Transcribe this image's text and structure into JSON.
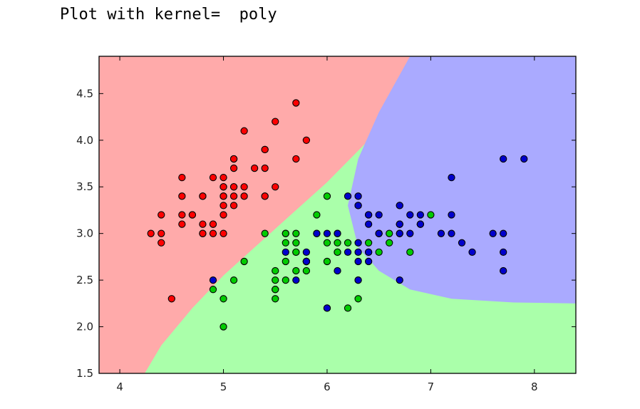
{
  "output": {
    "text": "Plot with kernel=  poly"
  },
  "chart_data": {
    "type": "scatter",
    "title": "",
    "xlabel": "",
    "ylabel": "",
    "xlim": [
      3.8,
      8.4
    ],
    "ylim": [
      1.5,
      4.9
    ],
    "grid": false,
    "legend": "none",
    "x_ticks": [
      4,
      5,
      6,
      7,
      8
    ],
    "y_ticks": [
      1.5,
      2.0,
      2.5,
      3.0,
      3.5,
      4.0,
      4.5
    ],
    "x_tick_labels": [
      "4",
      "5",
      "6",
      "7",
      "8"
    ],
    "y_tick_labels": [
      "1.5",
      "2.0",
      "2.5",
      "3.0",
      "3.5",
      "4.0",
      "4.5"
    ],
    "region_colors": {
      "class0": "#ffaaaa",
      "class1": "#aaffaa",
      "class2": "#aaaaff"
    },
    "decision_regions": {
      "class0_green_boundary": [
        [
          4.24,
          1.5
        ],
        [
          4.4,
          1.8
        ],
        [
          4.7,
          2.2
        ],
        [
          5.0,
          2.55
        ],
        [
          5.3,
          2.85
        ],
        [
          5.6,
          3.15
        ],
        [
          6.0,
          3.55
        ],
        [
          6.4,
          4.0
        ],
        [
          7.0,
          4.65
        ],
        [
          7.3,
          4.9
        ]
      ],
      "class2_region": [
        [
          6.8,
          4.9
        ],
        [
          6.5,
          4.3
        ],
        [
          6.3,
          3.8
        ],
        [
          6.2,
          3.3
        ],
        [
          6.3,
          2.85
        ],
        [
          6.5,
          2.6
        ],
        [
          6.8,
          2.4
        ],
        [
          7.2,
          2.3
        ],
        [
          7.8,
          2.26
        ],
        [
          8.4,
          2.25
        ],
        [
          8.4,
          4.9
        ]
      ]
    },
    "series": [
      {
        "color": "#ff0000",
        "points": [
          [
            5.1,
            3.5
          ],
          [
            4.9,
            3.0
          ],
          [
            4.7,
            3.2
          ],
          [
            4.6,
            3.1
          ],
          [
            5.0,
            3.6
          ],
          [
            5.4,
            3.9
          ],
          [
            4.6,
            3.4
          ],
          [
            5.0,
            3.4
          ],
          [
            4.4,
            2.9
          ],
          [
            4.9,
            3.1
          ],
          [
            5.4,
            3.7
          ],
          [
            4.8,
            3.4
          ],
          [
            4.8,
            3.0
          ],
          [
            4.3,
            3.0
          ],
          [
            5.8,
            4.0
          ],
          [
            5.7,
            4.4
          ],
          [
            5.4,
            3.9
          ],
          [
            5.1,
            3.5
          ],
          [
            5.7,
            3.8
          ],
          [
            5.1,
            3.8
          ],
          [
            5.4,
            3.4
          ],
          [
            5.1,
            3.7
          ],
          [
            4.6,
            3.6
          ],
          [
            5.1,
            3.3
          ],
          [
            4.8,
            3.4
          ],
          [
            5.0,
            3.0
          ],
          [
            5.0,
            3.4
          ],
          [
            5.2,
            3.5
          ],
          [
            5.2,
            3.4
          ],
          [
            4.7,
            3.2
          ],
          [
            4.8,
            3.1
          ],
          [
            5.4,
            3.4
          ],
          [
            5.2,
            4.1
          ],
          [
            5.5,
            4.2
          ],
          [
            4.9,
            3.1
          ],
          [
            5.0,
            3.2
          ],
          [
            5.5,
            3.5
          ],
          [
            4.9,
            3.6
          ],
          [
            4.4,
            3.0
          ],
          [
            5.1,
            3.4
          ],
          [
            5.0,
            3.5
          ],
          [
            4.5,
            2.3
          ],
          [
            4.4,
            3.2
          ],
          [
            5.0,
            3.5
          ],
          [
            5.1,
            3.8
          ],
          [
            4.8,
            3.0
          ],
          [
            5.1,
            3.8
          ],
          [
            4.6,
            3.2
          ],
          [
            5.3,
            3.7
          ],
          [
            5.0,
            3.3
          ]
        ]
      },
      {
        "color": "#00cc00",
        "points": [
          [
            7.0,
            3.2
          ],
          [
            6.4,
            3.2
          ],
          [
            6.9,
            3.1
          ],
          [
            5.5,
            2.3
          ],
          [
            6.5,
            2.8
          ],
          [
            5.7,
            2.8
          ],
          [
            6.3,
            3.3
          ],
          [
            4.9,
            2.4
          ],
          [
            6.6,
            2.9
          ],
          [
            5.2,
            2.7
          ],
          [
            5.0,
            2.0
          ],
          [
            5.9,
            3.0
          ],
          [
            6.0,
            2.2
          ],
          [
            6.1,
            2.9
          ],
          [
            5.6,
            2.9
          ],
          [
            6.7,
            3.1
          ],
          [
            5.6,
            3.0
          ],
          [
            5.8,
            2.7
          ],
          [
            6.2,
            2.2
          ],
          [
            5.6,
            2.5
          ],
          [
            5.9,
            3.2
          ],
          [
            6.1,
            2.8
          ],
          [
            6.3,
            2.5
          ],
          [
            6.1,
            2.8
          ],
          [
            6.4,
            2.9
          ],
          [
            6.6,
            3.0
          ],
          [
            6.8,
            2.8
          ],
          [
            6.7,
            3.0
          ],
          [
            6.0,
            2.9
          ],
          [
            5.7,
            2.6
          ],
          [
            5.5,
            2.4
          ],
          [
            5.5,
            2.4
          ],
          [
            5.8,
            2.7
          ],
          [
            6.0,
            2.7
          ],
          [
            5.4,
            3.0
          ],
          [
            6.0,
            3.4
          ],
          [
            6.7,
            3.1
          ],
          [
            6.3,
            2.3
          ],
          [
            5.6,
            3.0
          ],
          [
            5.5,
            2.5
          ],
          [
            5.5,
            2.6
          ],
          [
            6.1,
            3.0
          ],
          [
            5.8,
            2.6
          ],
          [
            5.0,
            2.3
          ],
          [
            5.6,
            2.7
          ],
          [
            5.7,
            3.0
          ],
          [
            5.7,
            2.9
          ],
          [
            6.2,
            2.9
          ],
          [
            5.1,
            2.5
          ],
          [
            5.7,
            2.8
          ]
        ]
      },
      {
        "color": "#0000cc",
        "points": [
          [
            6.3,
            3.3
          ],
          [
            5.8,
            2.7
          ],
          [
            7.1,
            3.0
          ],
          [
            6.3,
            2.9
          ],
          [
            6.5,
            3.0
          ],
          [
            7.6,
            3.0
          ],
          [
            4.9,
            2.5
          ],
          [
            7.3,
            2.9
          ],
          [
            6.7,
            2.5
          ],
          [
            7.2,
            3.6
          ],
          [
            6.5,
            3.2
          ],
          [
            6.4,
            2.7
          ],
          [
            6.8,
            3.0
          ],
          [
            5.7,
            2.5
          ],
          [
            5.8,
            2.8
          ],
          [
            6.4,
            3.2
          ],
          [
            6.5,
            3.0
          ],
          [
            7.7,
            3.8
          ],
          [
            7.7,
            2.6
          ],
          [
            6.0,
            2.2
          ],
          [
            6.9,
            3.2
          ],
          [
            5.6,
            2.8
          ],
          [
            7.7,
            2.8
          ],
          [
            6.3,
            2.7
          ],
          [
            6.7,
            3.3
          ],
          [
            7.2,
            3.2
          ],
          [
            6.2,
            2.8
          ],
          [
            6.1,
            3.0
          ],
          [
            6.4,
            2.8
          ],
          [
            7.2,
            3.0
          ],
          [
            7.4,
            2.8
          ],
          [
            7.9,
            3.8
          ],
          [
            6.4,
            2.8
          ],
          [
            6.3,
            2.8
          ],
          [
            6.1,
            2.6
          ],
          [
            7.7,
            3.0
          ],
          [
            6.3,
            3.4
          ],
          [
            6.4,
            3.1
          ],
          [
            6.0,
            3.0
          ],
          [
            6.9,
            3.1
          ],
          [
            6.7,
            3.1
          ],
          [
            6.9,
            3.1
          ],
          [
            5.8,
            2.7
          ],
          [
            6.8,
            3.2
          ],
          [
            6.7,
            3.3
          ],
          [
            6.7,
            3.0
          ],
          [
            6.3,
            2.5
          ],
          [
            6.5,
            3.0
          ],
          [
            6.2,
            3.4
          ],
          [
            5.9,
            3.0
          ]
        ]
      }
    ]
  }
}
